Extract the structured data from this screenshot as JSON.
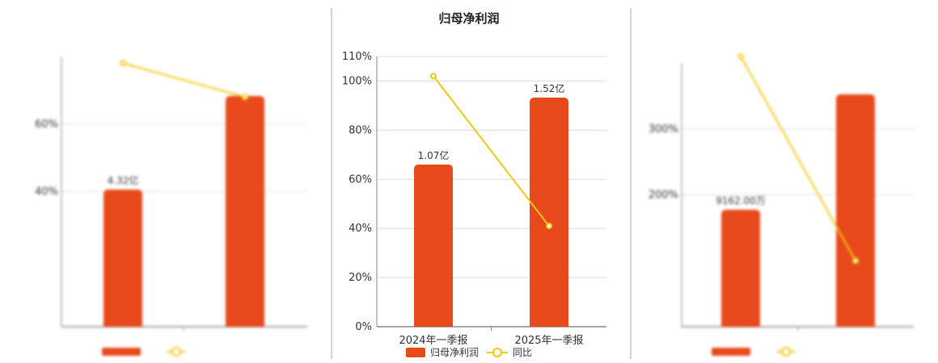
{
  "colors": {
    "bar": "#E8491A",
    "line": "#F2C811",
    "grid": "#dcdcf0",
    "axis": "#888888",
    "divider": "#aaaaaa"
  },
  "chart_data": [
    {
      "type": "bar",
      "title": "",
      "categories": [
        "",
        ""
      ],
      "series": [
        {
          "name": "",
          "values": [
            4.32,
            6.9
          ],
          "labels": [
            "4.32亿",
            ""
          ]
        },
        {
          "name": "",
          "type": "line",
          "values": [
            78,
            68
          ]
        }
      ],
      "ylim": [
        0,
        80
      ],
      "yticks": [
        40,
        60
      ],
      "ytick_labels": [
        "40%",
        "60%"
      ],
      "grid": true
    },
    {
      "type": "bar",
      "title": "归母净利润",
      "categories": [
        "2024年一季报",
        "2025年一季报"
      ],
      "series": [
        {
          "name": "归母净利润",
          "values": [
            1.07,
            1.52
          ],
          "labels": [
            "1.07亿",
            "1.52亿"
          ]
        },
        {
          "name": "同比",
          "type": "line",
          "values": [
            102,
            41
          ]
        }
      ],
      "ylim": [
        0,
        110
      ],
      "yticks": [
        0,
        20,
        40,
        60,
        80,
        100,
        110
      ],
      "ytick_labels": [
        "0%",
        "20%",
        "40%",
        "60%",
        "80%",
        "100%",
        "110%"
      ],
      "grid": true,
      "legend": "bottom-center"
    },
    {
      "type": "bar",
      "title": "",
      "categories": [
        "",
        ""
      ],
      "series": [
        {
          "name": "",
          "values": [
            0.9162,
            1.78
          ],
          "labels": [
            "9162.00万",
            ""
          ]
        },
        {
          "name": "",
          "type": "line",
          "values": [
            410,
            100
          ]
        }
      ],
      "ylim": [
        0,
        400
      ],
      "yticks": [
        200,
        300
      ],
      "ytick_labels": [
        "200%",
        "300%"
      ],
      "grid": true
    }
  ]
}
